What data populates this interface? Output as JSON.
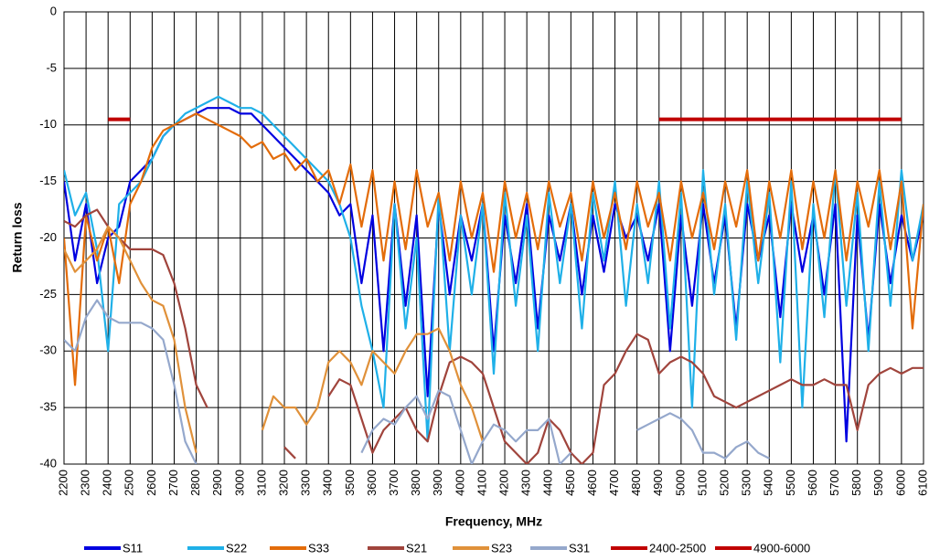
{
  "chart_data": {
    "type": "line",
    "xlabel": "Frequency, MHz",
    "ylabel": "Return loss",
    "xlim": [
      2200,
      6100
    ],
    "ylim": [
      -40,
      0
    ],
    "xticks": [
      2200,
      2300,
      2400,
      2500,
      2600,
      2700,
      2800,
      2900,
      3000,
      3100,
      3200,
      3300,
      3400,
      3500,
      3600,
      3700,
      3800,
      3900,
      4000,
      4100,
      4200,
      4300,
      4400,
      4500,
      4600,
      4700,
      4800,
      4900,
      5000,
      5100,
      5200,
      5300,
      5400,
      5500,
      5600,
      5700,
      5800,
      5900,
      6000,
      6100
    ],
    "yticks": [
      0,
      -5,
      -10,
      -15,
      -20,
      -25,
      -30,
      -35,
      -40
    ],
    "grid": true,
    "x": [
      2200,
      2250,
      2300,
      2350,
      2400,
      2450,
      2500,
      2550,
      2600,
      2650,
      2700,
      2750,
      2800,
      2850,
      2900,
      2950,
      3000,
      3050,
      3100,
      3150,
      3200,
      3250,
      3300,
      3350,
      3400,
      3450,
      3500,
      3550,
      3600,
      3650,
      3700,
      3750,
      3800,
      3850,
      3900,
      3950,
      4000,
      4050,
      4100,
      4150,
      4200,
      4250,
      4300,
      4350,
      4400,
      4450,
      4500,
      4550,
      4600,
      4650,
      4700,
      4750,
      4800,
      4850,
      4900,
      4950,
      5000,
      5050,
      5100,
      5150,
      5200,
      5250,
      5300,
      5350,
      5400,
      5450,
      5500,
      5550,
      5600,
      5650,
      5700,
      5750,
      5800,
      5850,
      5900,
      5950,
      6000,
      6050,
      6100
    ],
    "series": [
      {
        "name": "S11",
        "color": "#0000e0",
        "values": [
          -15,
          -22,
          -17,
          -24,
          -20,
          -19,
          -15,
          -14,
          -13,
          -11,
          -10,
          -9.5,
          -9,
          -8.5,
          -8.5,
          -8.5,
          -9,
          -9,
          -10,
          -11,
          -12,
          -13,
          -14,
          -15,
          -16,
          -18,
          -17,
          -24,
          -18,
          -30,
          -17,
          -26,
          -18,
          -34,
          -17,
          -25,
          -18,
          -22,
          -17,
          -30,
          -18,
          -24,
          -17,
          -28,
          -18,
          -22,
          -17,
          -25,
          -18,
          -23,
          -17,
          -20,
          -18,
          -22,
          -17,
          -30,
          -18,
          -26,
          -17,
          -24,
          -18,
          -28,
          -17,
          -22,
          -18,
          -27,
          -17,
          -23,
          -18,
          -25,
          -17,
          -38,
          -18,
          -29,
          -17,
          -24,
          -18,
          -22,
          -18
        ]
      },
      {
        "name": "S22",
        "color": "#1fb0e8",
        "values": [
          -14,
          -18,
          -16,
          -21,
          -30,
          -17,
          -16,
          -15,
          -13,
          -11,
          -10,
          -9,
          -8.5,
          -8,
          -7.5,
          -8,
          -8.5,
          -8.5,
          -9,
          -10,
          -11,
          -12,
          -13,
          -14,
          -15,
          -17,
          -20,
          -26,
          -30,
          -35,
          -17,
          -28,
          -20,
          -38,
          -16,
          -30,
          -18,
          -25,
          -17,
          -32,
          -16,
          -26,
          -18,
          -30,
          -16,
          -24,
          -17,
          -28,
          -16,
          -22,
          -15,
          -26,
          -17,
          -24,
          -15,
          -28,
          -16,
          -35,
          -14,
          -25,
          -17,
          -29,
          -15,
          -24,
          -16,
          -31,
          -15,
          -35,
          -17,
          -27,
          -14,
          -26,
          -16,
          -30,
          -15,
          -26,
          -14,
          -22,
          -17
        ]
      },
      {
        "name": "S33",
        "color": "#e36c0a",
        "values": [
          -20,
          -33,
          -18,
          -22,
          -19,
          -24,
          -17,
          -15,
          -12,
          -10.5,
          -10,
          -9.5,
          -9,
          -9.5,
          -10,
          -10.5,
          -11,
          -12,
          -11.5,
          -13,
          -12.5,
          -14,
          -13,
          -15,
          -14,
          -17,
          -13.5,
          -19,
          -14,
          -22,
          -15,
          -21,
          -14,
          -19,
          -16,
          -22,
          -15,
          -20,
          -16,
          -23,
          -15,
          -20,
          -16,
          -21,
          -15,
          -19,
          -16,
          -22,
          -15,
          -20,
          -16,
          -21,
          -15,
          -19,
          -16,
          -22,
          -15,
          -20,
          -16,
          -21,
          -15,
          -19,
          -14,
          -22,
          -15,
          -20,
          -14,
          -21,
          -15,
          -20,
          -14,
          -22,
          -15,
          -19,
          -14,
          -21,
          -15,
          -28,
          -17
        ]
      },
      {
        "name": "S21",
        "color": "#a0443c",
        "values": [
          -18.5,
          -19,
          -18,
          -17.5,
          -19,
          -20,
          -21,
          -21,
          -21,
          -21.5,
          -24,
          -28,
          -33,
          -35,
          null,
          null,
          null,
          null,
          null,
          null,
          -38.5,
          -39.5,
          null,
          null,
          -34,
          -32.5,
          -33,
          -36,
          -39,
          -37,
          -36,
          -35,
          -37,
          -38,
          -34,
          -31,
          -30.5,
          -31,
          -32,
          -35,
          -38,
          -39,
          -40,
          -39,
          -36,
          -37,
          -39,
          -40,
          -39,
          -33,
          -32,
          -30,
          -28.5,
          -29,
          -32,
          -31,
          -30.5,
          -31,
          -32,
          -34,
          -34.5,
          -35,
          -34.5,
          -34,
          -33.5,
          -33,
          -32.5,
          -33,
          -33,
          -32.5,
          -33,
          -33,
          -37,
          -33,
          -32,
          -31.5,
          -32,
          -31.5,
          -31.5
        ]
      },
      {
        "name": "S23",
        "color": "#e0913a",
        "values": [
          -21,
          -23,
          -22,
          -21,
          -19,
          -20,
          -22,
          -24,
          -25.5,
          -26,
          -29,
          -35,
          -39,
          null,
          null,
          null,
          null,
          null,
          -37,
          -34,
          -35,
          -35,
          -36.5,
          -35,
          -31,
          -30,
          -31,
          -33,
          -30,
          -31,
          -32,
          -30,
          -28.5,
          -28.5,
          -28,
          -30,
          -33,
          -35,
          -38,
          null,
          null,
          null,
          null,
          null,
          null,
          null,
          null,
          null,
          null,
          null,
          null,
          null,
          null,
          null,
          null,
          null,
          null,
          null,
          null,
          null,
          null,
          null,
          null,
          null,
          null,
          null,
          null,
          null,
          null,
          null,
          null,
          null,
          null,
          null,
          null,
          null,
          null,
          null,
          null
        ]
      },
      {
        "name": "S31",
        "color": "#95a8cc",
        "values": [
          -29,
          -30,
          -27,
          -25.5,
          -27,
          -27.5,
          -27.5,
          -27.5,
          -28,
          -29,
          -33,
          -38,
          -40,
          null,
          null,
          null,
          null,
          null,
          -39.5,
          null,
          null,
          null,
          null,
          null,
          null,
          null,
          null,
          -39,
          -37,
          -36,
          -36.5,
          -35,
          -34,
          -36,
          -33.5,
          -34,
          -37,
          -40,
          -38,
          -36.5,
          -37,
          -38,
          -37,
          -37,
          -36,
          -40,
          -39,
          null,
          null,
          null,
          null,
          null,
          -37,
          -36.5,
          -36,
          -35.5,
          -36,
          -37,
          -39,
          -39,
          -39.5,
          -38.5,
          -38,
          -39,
          -39.5,
          null,
          null,
          null,
          null,
          null,
          null,
          null,
          null,
          null,
          null,
          null,
          null,
          null,
          null
        ]
      },
      {
        "name": "2400-2500",
        "color": "#c00000",
        "x": [
          2400,
          2500
        ],
        "values": [
          -9.5,
          -9.5
        ]
      },
      {
        "name": "4900-6000",
        "color": "#c00000",
        "x": [
          4900,
          6000
        ],
        "values": [
          -9.5,
          -9.5
        ]
      }
    ]
  }
}
